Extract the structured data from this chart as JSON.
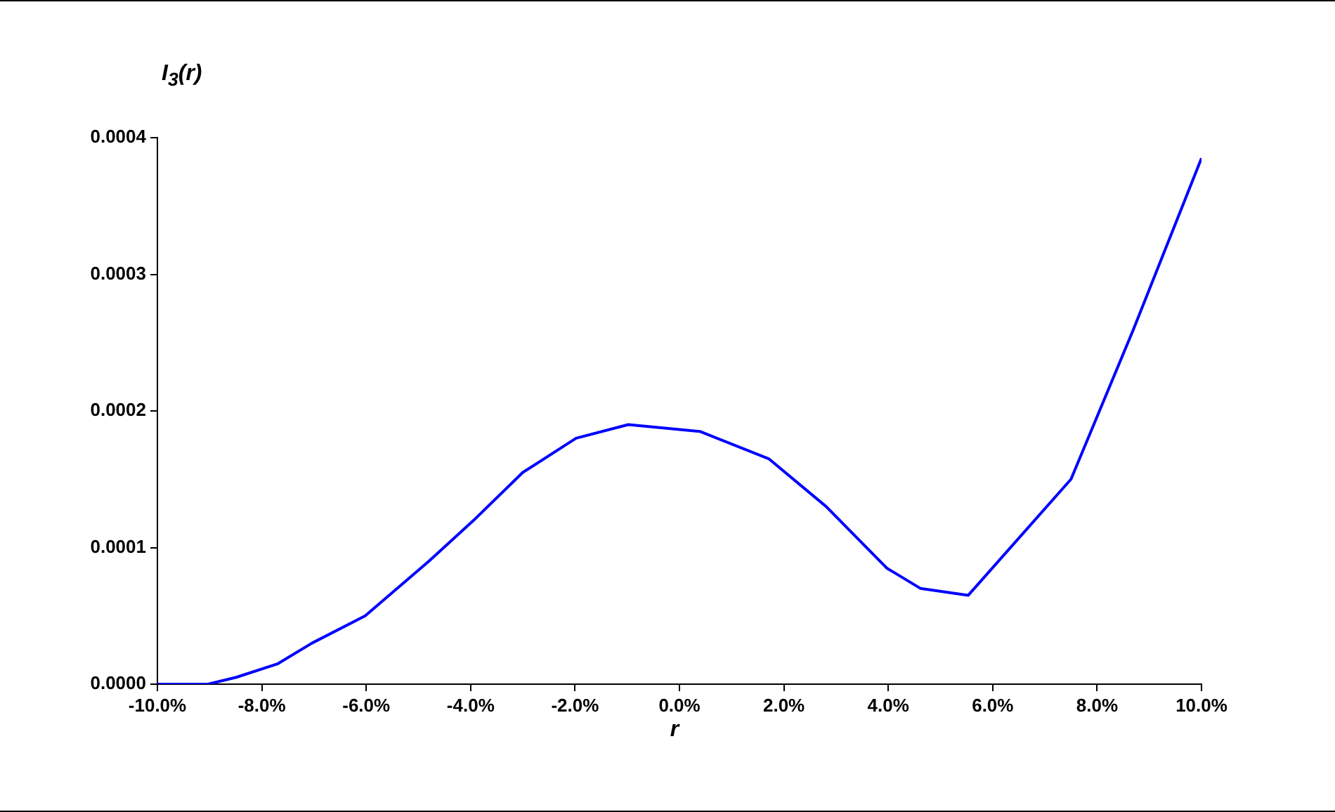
{
  "chart_data": {
    "type": "line",
    "ylabel": "I$_{3}$(r)",
    "xlabel": "r",
    "x": [
      -10,
      -9.03,
      -8.49,
      -7.69,
      -7.04,
      -6.02,
      -4.8,
      -3.94,
      -3.0,
      -1.98,
      -0.98,
      0.39,
      1.71,
      2.81,
      3.97,
      4.62,
      5.53,
      7.5,
      8.7,
      10
    ],
    "series": [
      {
        "color": "#0000ff",
        "values": [
          0,
          0,
          5e-06,
          1.5e-05,
          3e-05,
          5e-05,
          9e-05,
          0.00012,
          0.000155,
          0.00018,
          0.00019,
          0.000185,
          0.000165,
          0.00013,
          8.5e-05,
          7e-05,
          6.5e-05,
          0.00015,
          0.00026,
          0.000385
        ]
      }
    ],
    "xlim": [
      -10,
      10
    ],
    "xticks": [
      {
        "value": -10,
        "label": "-10.0%"
      },
      {
        "value": -8,
        "label": "-8.0%"
      },
      {
        "value": -6,
        "label": "-6.0%"
      },
      {
        "value": -4,
        "label": "-4.0%"
      },
      {
        "value": -2,
        "label": "-2.0%"
      },
      {
        "value": 0,
        "label": "0.0%"
      },
      {
        "value": 2,
        "label": "2.0%"
      },
      {
        "value": 4,
        "label": "4.0%"
      },
      {
        "value": 6,
        "label": "6.0%"
      },
      {
        "value": 8,
        "label": "8.0%"
      },
      {
        "value": 10,
        "label": "10.0%"
      }
    ],
    "ylim": [
      0,
      0.0004
    ],
    "yticks": [
      {
        "value": 0,
        "label": "0.0000"
      },
      {
        "value": 0.0001,
        "label": "0.0001"
      },
      {
        "value": 0.0002,
        "label": "0.0002"
      },
      {
        "value": 0.0003,
        "label": "0.0003"
      },
      {
        "value": 0.0004,
        "label": "0.0004"
      }
    ],
    "grid": false,
    "legend": false,
    "marker": "none",
    "line_style": "solid"
  }
}
